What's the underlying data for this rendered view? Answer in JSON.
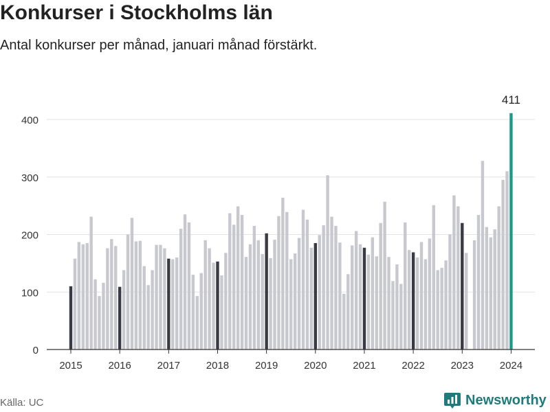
{
  "header": {
    "title": "Konkurser i Stockholms län",
    "subtitle": "Antal konkurser per månad, januari månad förstärkt."
  },
  "footer": {
    "source": "Källa: UC",
    "brand": "Newsworthy"
  },
  "colors": {
    "regular_bar": "#c8c8cf",
    "january_bar": "#3a3a44",
    "latest_bar": "#1c9a8c",
    "gridline": "#e3e3e3",
    "axis": "#333333",
    "brand": "#1f7b7b"
  },
  "icons": {
    "brand_logo": "newsworthy-logo-icon"
  },
  "chart_data": {
    "type": "bar",
    "title": "Konkurser i Stockholms län",
    "subtitle": "Antal konkurser per månad, januari månad förstärkt.",
    "xlabel": "",
    "ylabel": "",
    "ylim": [
      0,
      440
    ],
    "yticks": [
      0,
      100,
      200,
      300,
      400
    ],
    "xtick_labels": [
      "2015",
      "2016",
      "2017",
      "2018",
      "2019",
      "2020",
      "2021",
      "2022",
      "2023",
      "2024"
    ],
    "grid": "horizontal",
    "highlight": "january",
    "annotation": {
      "label": "411",
      "year": 2024,
      "month": 1,
      "value": 411
    },
    "series": [
      {
        "year": 2015,
        "values": [
          110,
          158,
          187,
          183,
          185,
          231,
          122,
          93,
          116,
          176,
          192,
          180
        ]
      },
      {
        "year": 2016,
        "values": [
          109,
          138,
          200,
          229,
          188,
          189,
          145,
          112,
          138,
          182,
          182,
          176
        ]
      },
      {
        "year": 2017,
        "values": [
          158,
          157,
          160,
          210,
          235,
          221,
          130,
          93,
          133,
          190,
          176,
          151
        ]
      },
      {
        "year": 2018,
        "values": [
          153,
          129,
          168,
          237,
          217,
          249,
          234,
          161,
          183,
          215,
          190,
          166
        ]
      },
      {
        "year": 2019,
        "values": [
          202,
          159,
          191,
          232,
          264,
          239,
          157,
          167,
          194,
          243,
          226,
          177
        ]
      },
      {
        "year": 2020,
        "values": [
          185,
          199,
          216,
          303,
          231,
          215,
          186,
          97,
          131,
          181,
          206,
          183
        ]
      },
      {
        "year": 2021,
        "values": [
          177,
          165,
          195,
          162,
          220,
          257,
          161,
          119,
          148,
          114,
          221,
          173
        ]
      },
      {
        "year": 2022,
        "values": [
          169,
          160,
          187,
          157,
          193,
          251,
          138,
          142,
          155,
          200,
          268,
          249
        ]
      },
      {
        "year": 2023,
        "values": [
          220,
          168,
          null,
          190,
          234,
          328,
          213,
          195,
          209,
          249,
          295,
          310
        ]
      },
      {
        "year": 2024,
        "values": [
          411
        ]
      }
    ]
  }
}
